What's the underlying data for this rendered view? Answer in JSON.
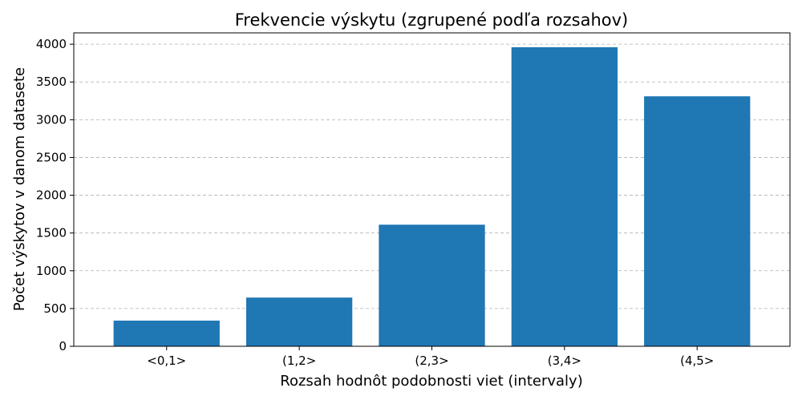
{
  "chart_data": {
    "type": "bar",
    "title": "Frekvencie výskytu (zgrupené podľa rozsahov)",
    "xlabel": "Rozsah hodnôt podobnosti viet (intervaly)",
    "ylabel": "Počet výskytov v danom datasete",
    "categories": [
      "<0,1>",
      "(1,2>",
      "(2,3>",
      "(3,4>",
      "(4,5>"
    ],
    "values": [
      340,
      645,
      1610,
      3960,
      3310
    ],
    "ylim": [
      0,
      4150
    ],
    "yticks": [
      0,
      500,
      1000,
      1500,
      2000,
      2500,
      3000,
      3500,
      4000
    ],
    "grid": "y",
    "bar_color": "#1f77b4"
  }
}
